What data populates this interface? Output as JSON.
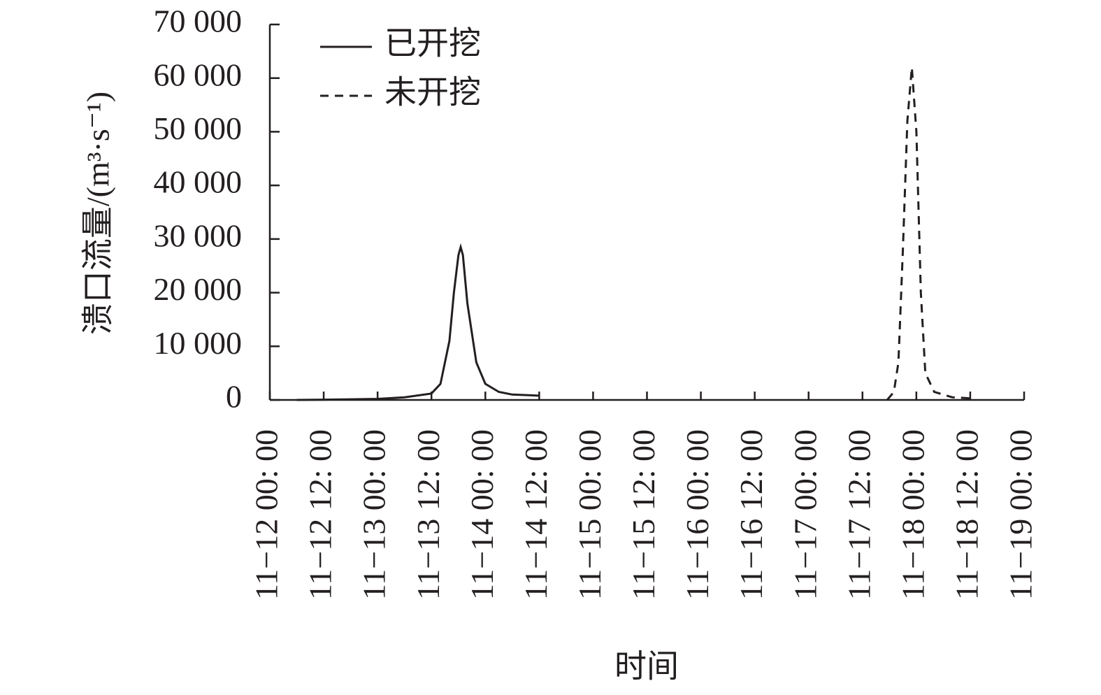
{
  "chart_data": {
    "type": "line",
    "y_label": "溃口流量/(m³·s⁻¹)",
    "x_label": "时间",
    "xlim": [
      "11-12 00:00",
      "11-19 00:00"
    ],
    "xticks": [
      {
        "value": "11-12 00:00",
        "label": "11−12 00: 00"
      },
      {
        "value": "11-12 12:00",
        "label": "11−12 12: 00"
      },
      {
        "value": "11-13 00:00",
        "label": "11−13 00: 00"
      },
      {
        "value": "11-13 12:00",
        "label": "11−13 12: 00"
      },
      {
        "value": "11-14 00:00",
        "label": "11−14 00: 00"
      },
      {
        "value": "11-14 12:00",
        "label": "11−14 12: 00"
      },
      {
        "value": "11-15 00:00",
        "label": "11−15 00: 00"
      },
      {
        "value": "11-15 12:00",
        "label": "11−15 12: 00"
      },
      {
        "value": "11-16 00:00",
        "label": "11−16 00: 00"
      },
      {
        "value": "11-16 12:00",
        "label": "11−16 12: 00"
      },
      {
        "value": "11-17 00:00",
        "label": "11−17 00: 00"
      },
      {
        "value": "11-17 12:00",
        "label": "11−17 12: 00"
      },
      {
        "value": "11-18 00:00",
        "label": "11−18 00: 00"
      },
      {
        "value": "11-18 12:00",
        "label": "11−18 12: 00"
      },
      {
        "value": "11-19 00:00",
        "label": "11−19 00: 00"
      }
    ],
    "ylim": [
      0,
      70000
    ],
    "yticks": [
      0,
      {
        "value": 10000,
        "label": "10 000"
      },
      {
        "value": 20000,
        "label": "20 000"
      },
      {
        "value": 30000,
        "label": "30 000"
      },
      {
        "value": 40000,
        "label": "40 000"
      },
      {
        "value": 50000,
        "label": "50 000"
      },
      {
        "value": 60000,
        "label": "60 000"
      },
      {
        "value": 70000,
        "label": "70 000"
      }
    ],
    "legend": "upper left",
    "series": [
      {
        "name": "已开挖",
        "color": "#231f20",
        "dash": "solid",
        "x": [
          "11-12 06:00",
          "11-12 12:00",
          "11-13 00:00",
          "11-13 06:00",
          "11-13 12:00",
          "11-13 14:00",
          "11-13 16:00",
          "11-13 17:00",
          "11-13 18:00",
          "11-13 18:30",
          "11-13 19:00",
          "11-13 20:00",
          "11-13 22:00",
          "11-14 00:00",
          "11-14 03:00",
          "11-14 06:00",
          "11-14 12:00"
        ],
        "values": [
          0,
          50,
          200,
          500,
          1200,
          3000,
          11000,
          20000,
          27000,
          28500,
          27000,
          18000,
          7000,
          3000,
          1500,
          1000,
          800
        ]
      },
      {
        "name": "未开挖",
        "color": "#231f20",
        "dash": "dashed",
        "x": [
          "11-17 17:30",
          "11-17 19:00",
          "11-17 20:00",
          "11-17 21:00",
          "11-17 22:00",
          "11-17 23:00",
          "11-18 00:00",
          "11-18 01:00",
          "11-18 02:00",
          "11-18 04:00",
          "11-18 08:00",
          "11-18 12:00"
        ],
        "values": [
          0,
          1500,
          7000,
          28000,
          52000,
          62000,
          50000,
          20000,
          5000,
          1500,
          500,
          300
        ]
      }
    ]
  }
}
